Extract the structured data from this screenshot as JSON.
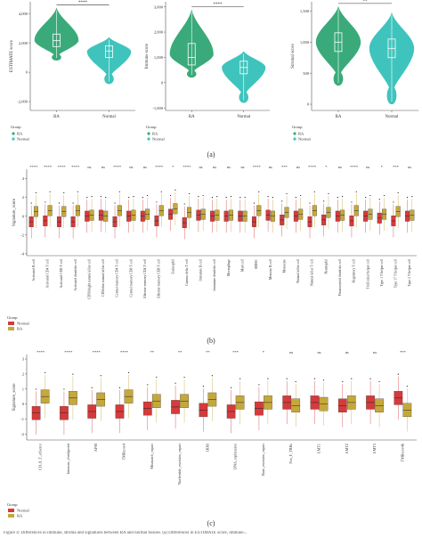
{
  "figure": {
    "caption": "Figure 4: Differences in immune, stroma and signatures between RA and normal tissues. (a) Differences in ESTIMATE score, immune..."
  },
  "panel_labels": {
    "a": "(a)",
    "b": "(b)",
    "c": "(c)"
  },
  "colors": {
    "ra": "#3aaa7a",
    "normal": "#3fc4bd",
    "ra_box": "#c5a83a",
    "normal_box": "#d63a3a"
  },
  "chart_data": [
    {
      "id": "a1",
      "type": "violin",
      "ylabel": "ESTIMATE score",
      "yticks": [
        -2000,
        0,
        2000,
        4000
      ],
      "ylim": [
        -2600,
        4800
      ],
      "categories": [
        "RA",
        "Normal"
      ],
      "significance": "****",
      "series": [
        {
          "group": "RA",
          "min": 800,
          "q1": 1750,
          "median": 2150,
          "q3": 2600,
          "max": 4400,
          "color": "#3aaa7a"
        },
        {
          "group": "Normal",
          "min": -800,
          "q1": 1000,
          "median": 1450,
          "q3": 1800,
          "max": 2400,
          "color": "#3fc4bd"
        }
      ],
      "legend": {
        "title": "Group",
        "items": [
          "RA",
          "Normal"
        ]
      }
    },
    {
      "id": "a2",
      "type": "violin",
      "ylabel": "Immune score",
      "yticks": [
        -1000,
        0,
        1000,
        2000,
        3000
      ],
      "ylim": [
        -1100,
        3200
      ],
      "categories": [
        "RA",
        "Normal"
      ],
      "significance": "****",
      "series": [
        {
          "group": "RA",
          "min": 200,
          "q1": 700,
          "median": 1000,
          "q3": 1550,
          "max": 2900,
          "color": "#3aaa7a"
        },
        {
          "group": "Normal",
          "min": -800,
          "q1": 350,
          "median": 600,
          "q3": 850,
          "max": 1250,
          "color": "#3fc4bd"
        }
      ],
      "legend": {
        "title": "Group",
        "items": [
          "RA",
          "Normal"
        ]
      }
    },
    {
      "id": "a3",
      "type": "violin",
      "ylabel": "Stromal score",
      "yticks": [
        0,
        500,
        1000,
        1500
      ],
      "ylim": [
        -100,
        1650
      ],
      "categories": [
        "RA",
        "Normal"
      ],
      "significance": "**",
      "series": [
        {
          "group": "RA",
          "min": 300,
          "q1": 850,
          "median": 1000,
          "q3": 1150,
          "max": 1580,
          "color": "#3aaa7a"
        },
        {
          "group": "Normal",
          "min": 0,
          "q1": 750,
          "median": 900,
          "q3": 1050,
          "max": 1480,
          "color": "#3fc4bd"
        }
      ],
      "legend": {
        "title": "Group",
        "items": [
          "RA",
          "Normal"
        ]
      }
    },
    {
      "id": "b",
      "type": "box",
      "ylabel": "Signature_score",
      "yticks": [
        -4,
        -2,
        0,
        2,
        4
      ],
      "ylim": [
        -4.2,
        5
      ],
      "categories": [
        "Activated B cell",
        "Activated CD4 T cell",
        "Activated CD8 T cell",
        "Activated dendritic cell",
        "CD56bright natural killer cell",
        "CD56dim natural killer cell",
        "Central memory CD4 T cell",
        "Central memory CD8 T cell",
        "Effector memory CD4 T cell",
        "Effector memory CD8 T cell",
        "Eosinophil",
        "Gamma delta T cell",
        "Immature B cell",
        "Immature dendritic cell",
        "Macrophage",
        "Mast cell",
        "MDSC",
        "Memory B cell",
        "Monocyte",
        "Natural killer cell",
        "Natural killer T cell",
        "Neutrophil",
        "Plasmacytoid dendritic cell",
        "Regulatory T cell",
        "T follicular helper cell",
        "Type 1 T helper cell",
        "Type 17 T helper cell",
        "Type 2 T helper cell"
      ],
      "significance": [
        "****",
        "****",
        "****",
        "****",
        "ns",
        "ns",
        "****",
        "ns",
        "ns",
        "****",
        "*",
        "****",
        "ns",
        "ns",
        "ns",
        "ns",
        "****",
        "ns",
        "***",
        "ns",
        "****",
        "*",
        "ns",
        "****",
        "ns",
        "*",
        "***",
        "ns"
      ],
      "series": [
        {
          "name": "Normal",
          "medians": [
            -0.6,
            -0.5,
            -0.6,
            -0.6,
            0.0,
            0.1,
            -0.6,
            0.0,
            0.0,
            -0.5,
            0.2,
            -0.7,
            0.1,
            0.0,
            0.0,
            0.0,
            -0.6,
            0.1,
            -0.4,
            0.0,
            -0.6,
            -0.4,
            0.0,
            -0.5,
            0.0,
            -0.2,
            -0.5,
            0.0
          ]
        },
        {
          "name": "RA",
          "medians": [
            0.5,
            0.6,
            0.5,
            0.6,
            0.1,
            0.0,
            0.6,
            0.1,
            0.2,
            0.6,
            0.8,
            0.4,
            0.2,
            0.1,
            0.1,
            0.0,
            0.6,
            0.0,
            0.4,
            0.2,
            0.6,
            0.4,
            0.1,
            0.6,
            0.2,
            0.2,
            0.5,
            0.1
          ]
        }
      ],
      "legend": {
        "title": "Group",
        "items": [
          "Normal",
          "RA"
        ]
      }
    },
    {
      "id": "c",
      "type": "box",
      "ylabel": "Signature_score",
      "yticks": [
        -2,
        -1,
        0,
        1,
        2,
        3
      ],
      "ylim": [
        -2.4,
        3.3
      ],
      "categories": [
        "CD_8_T_effector",
        "Immune_checkpoint",
        "APM",
        "TMBcore4",
        "Mismatch_repair",
        "Nucleotide_excision_repair",
        "DDR",
        "DNA_replication",
        "Base_excision_repair",
        "Pan_F_TBRs",
        "EMT1",
        "EMT2",
        "EMT3",
        "TMBcore4b"
      ],
      "significance": [
        "****",
        "****",
        "****",
        "****",
        "**",
        "**",
        "**",
        "***",
        "*",
        "ns",
        "ns",
        "ns",
        "ns",
        "***"
      ],
      "series": [
        {
          "name": "Normal",
          "medians": [
            -0.6,
            -0.6,
            -0.5,
            -0.5,
            -0.3,
            -0.2,
            -0.4,
            -0.5,
            -0.3,
            0.1,
            0.1,
            -0.1,
            0.1,
            0.4
          ]
        },
        {
          "name": "RA",
          "medians": [
            0.5,
            0.4,
            0.3,
            0.5,
            0.2,
            0.2,
            0.3,
            0.1,
            0.1,
            -0.1,
            0.0,
            0.1,
            -0.1,
            -0.4
          ]
        }
      ],
      "legend": {
        "title": "Group",
        "items": [
          "Normal",
          "RA"
        ]
      }
    }
  ]
}
